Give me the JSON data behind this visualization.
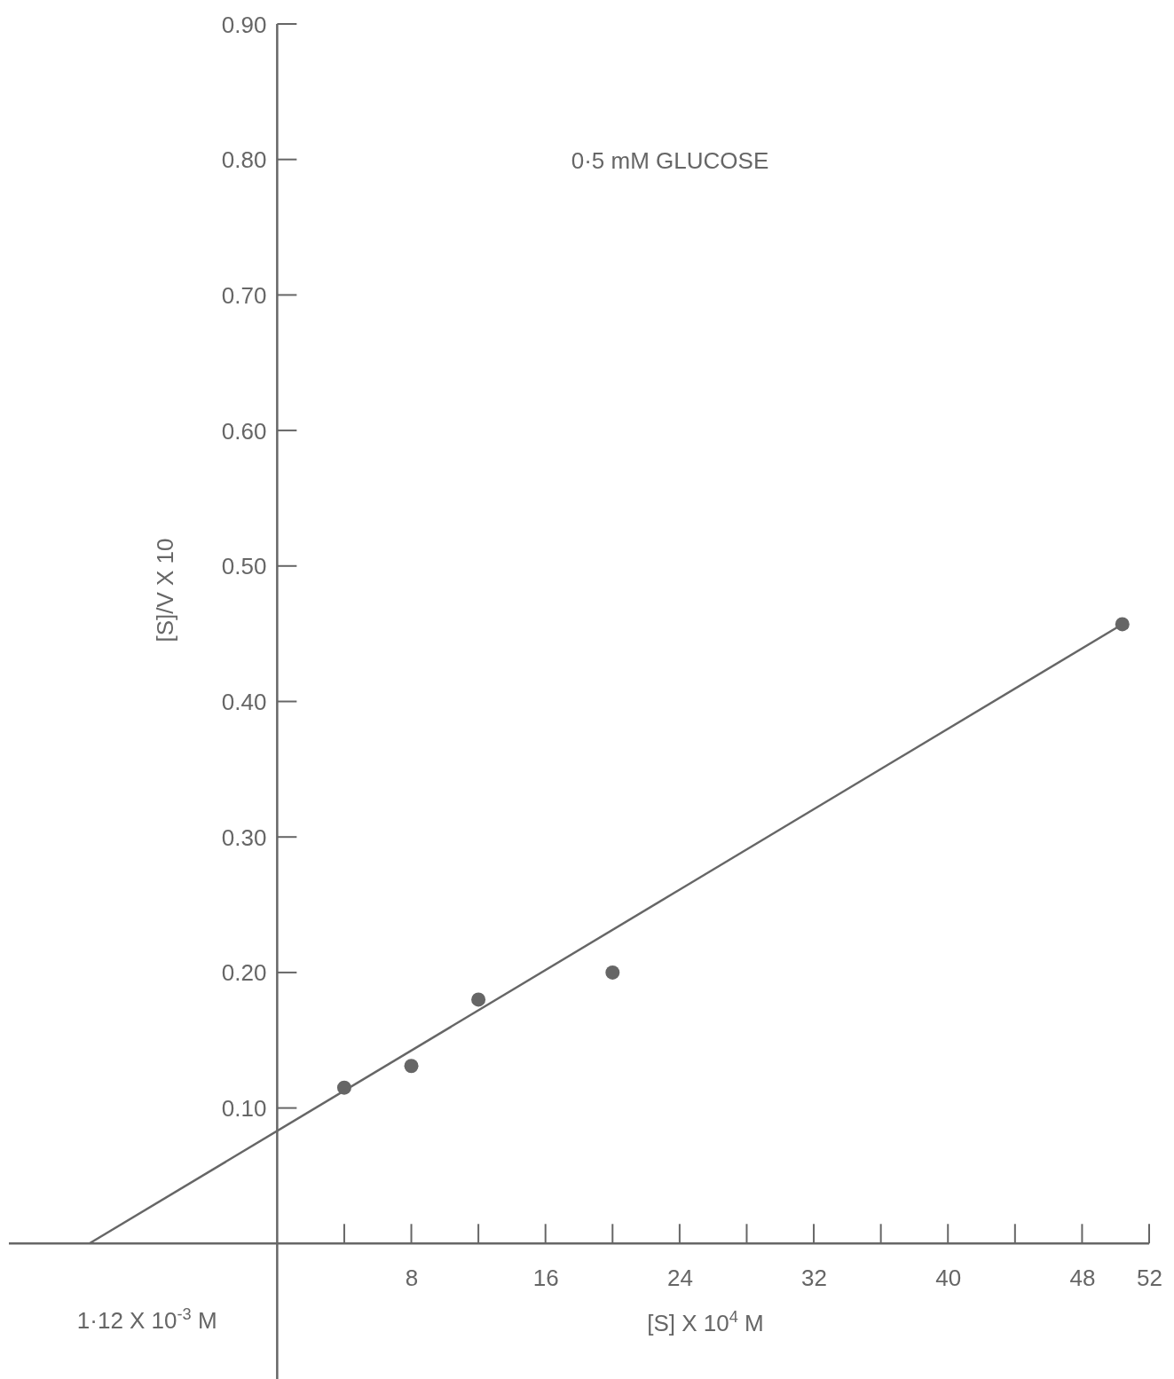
{
  "chart_data": {
    "type": "scatter",
    "xlabel": "[S]  X 10$^{4}$ M",
    "ylabel": "[S]/V X 10",
    "annotations": [
      "0·5 mM GLUCOSE",
      {
        "text": "1·12 X 10$^{-3}$ M",
        "x": -11.2,
        "y": 0
      }
    ],
    "series": [
      {
        "color": "#666666",
        "x": [
          4,
          8,
          12,
          20,
          50.4
        ],
        "values": [
          0.115,
          0.131,
          0.18,
          0.2,
          0.457
        ],
        "marker": "circle"
      },
      {
        "type": "line",
        "color": "#666666",
        "x": [
          -11.2,
          50.4
        ],
        "values": [
          0,
          0.457
        ],
        "marker": "none",
        "line_style": "solid"
      }
    ],
    "xlim": [
      -16,
      52
    ],
    "ylim": [
      -0.1,
      0.9
    ],
    "xticks": [
      8,
      16,
      24,
      32,
      40,
      48,
      52
    ],
    "yticks": [
      {
        "value": 0.1,
        "label": "0.10"
      },
      {
        "value": 0.2,
        "label": "0.20"
      },
      {
        "value": 0.3,
        "label": "0.30"
      },
      {
        "value": 0.4,
        "label": "0.40"
      },
      {
        "value": 0.5,
        "label": "0.50"
      },
      {
        "value": 0.6,
        "label": "0.60"
      },
      {
        "value": 0.7,
        "label": "0.70"
      },
      {
        "value": 0.8,
        "label": "0.80"
      },
      {
        "value": 0.9,
        "label": "0.90"
      }
    ],
    "grid": false
  }
}
